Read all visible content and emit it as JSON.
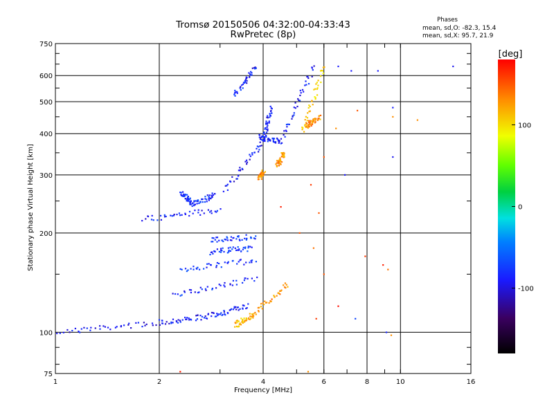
{
  "chart_data": {
    "type": "scatter",
    "title": "Tromsø 20150506 04:32:00-04:33:43",
    "subtitle": "RwPretec (8p)",
    "xlabel": "Frequency [MHz]",
    "ylabel": "Stationary phase Virtual Height [km]",
    "x_scale": "log",
    "y_scale": "log",
    "xlim": [
      1,
      16
    ],
    "ylim": [
      75,
      750
    ],
    "x_ticks": [
      1,
      2,
      4,
      6,
      8,
      10,
      16
    ],
    "y_ticks": [
      75,
      100,
      200,
      300,
      400,
      500,
      600,
      750
    ],
    "grid": true,
    "stats": {
      "header": "Phases",
      "line1": "mean, sd,O: -82.3, 15.4",
      "line2": "mean, sd,X:  95.7, 21.9"
    },
    "colorbar": {
      "label": "[deg]",
      "ticks": [
        "100",
        "0",
        "-100"
      ],
      "tick_values": [
        100,
        0,
        -100
      ],
      "range": [
        -180,
        180
      ]
    },
    "trace_segments": [
      {
        "x": [
          1.0,
          2.0
        ],
        "y": [
          100,
          107
        ],
        "phase": -95
      },
      {
        "x": [
          2.0,
          2.8
        ],
        "y": [
          107,
          112
        ],
        "phase": -90
      },
      {
        "x": [
          2.8,
          3.6
        ],
        "y": [
          112,
          120
        ],
        "phase": -88
      },
      {
        "x": [
          3.3,
          3.7
        ],
        "y": [
          105,
          112
        ],
        "phase": 115
      },
      {
        "x": [
          3.7,
          4.7
        ],
        "y": [
          112,
          140
        ],
        "phase": 130
      },
      {
        "x": [
          2.2,
          3.8
        ],
        "y": [
          130,
          145
        ],
        "phase": -85
      },
      {
        "x": [
          2.3,
          3.8
        ],
        "y": [
          155,
          165
        ],
        "phase": -80
      },
      {
        "x": [
          2.8,
          3.7
        ],
        "y": [
          175,
          180
        ],
        "phase": -75
      },
      {
        "x": [
          2.8,
          3.8
        ],
        "y": [
          190,
          195
        ],
        "phase": -78
      },
      {
        "x": [
          1.8,
          3.0
        ],
        "y": [
          220,
          235
        ],
        "phase": -88
      },
      {
        "x": [
          2.3,
          2.5
        ],
        "y": [
          265,
          245
        ],
        "phase": -82
      },
      {
        "x": [
          2.5,
          2.9
        ],
        "y": [
          245,
          260
        ],
        "phase": -82
      },
      {
        "x": [
          3.1,
          4.0
        ],
        "y": [
          270,
          380
        ],
        "phase": -92
      },
      {
        "x": [
          4.0,
          4.2
        ],
        "y": [
          380,
          480
        ],
        "phase": -90
      },
      {
        "x": [
          3.3,
          3.8
        ],
        "y": [
          520,
          640
        ],
        "phase": -88
      },
      {
        "x": [
          3.9,
          4.5
        ],
        "y": [
          390,
          380
        ],
        "phase": -85
      },
      {
        "x": [
          4.5,
          5.6
        ],
        "y": [
          380,
          640
        ],
        "phase": -88
      },
      {
        "x": [
          4.4,
          4.6
        ],
        "y": [
          320,
          350
        ],
        "phase": 125
      },
      {
        "x": [
          5.2,
          6.0
        ],
        "y": [
          400,
          640
        ],
        "phase": 105
      },
      {
        "x": [
          5.3,
          5.8
        ],
        "y": [
          420,
          450
        ],
        "phase": 130
      },
      {
        "x": [
          3.9,
          4.0
        ],
        "y": [
          295,
          305
        ],
        "phase": 130
      }
    ],
    "isolated_points": [
      {
        "x": 14.2,
        "y": 640,
        "phase": -95
      },
      {
        "x": 8.6,
        "y": 620,
        "phase": -90
      },
      {
        "x": 7.2,
        "y": 620,
        "phase": -90
      },
      {
        "x": 6.6,
        "y": 640,
        "phase": -90
      },
      {
        "x": 9.5,
        "y": 480,
        "phase": -88
      },
      {
        "x": 9.5,
        "y": 450,
        "phase": 130
      },
      {
        "x": 7.5,
        "y": 470,
        "phase": 150
      },
      {
        "x": 11.2,
        "y": 440,
        "phase": 130
      },
      {
        "x": 9.5,
        "y": 340,
        "phase": -95
      },
      {
        "x": 6.5,
        "y": 415,
        "phase": 130
      },
      {
        "x": 6.9,
        "y": 300,
        "phase": -90
      },
      {
        "x": 6.0,
        "y": 340,
        "phase": 150
      },
      {
        "x": 5.5,
        "y": 280,
        "phase": 160
      },
      {
        "x": 5.8,
        "y": 230,
        "phase": 150
      },
      {
        "x": 7.9,
        "y": 170,
        "phase": 160
      },
      {
        "x": 8.9,
        "y": 160,
        "phase": 170
      },
      {
        "x": 9.2,
        "y": 155,
        "phase": 140
      },
      {
        "x": 6.6,
        "y": 120,
        "phase": 175
      },
      {
        "x": 7.4,
        "y": 110,
        "phase": -70
      },
      {
        "x": 9.1,
        "y": 100,
        "phase": -85
      },
      {
        "x": 9.4,
        "y": 98,
        "phase": 130
      },
      {
        "x": 4.5,
        "y": 240,
        "phase": 170
      },
      {
        "x": 5.1,
        "y": 200,
        "phase": 150
      },
      {
        "x": 5.6,
        "y": 180,
        "phase": 140
      },
      {
        "x": 6.0,
        "y": 150,
        "phase": 150
      },
      {
        "x": 5.7,
        "y": 110,
        "phase": 160
      },
      {
        "x": 2.3,
        "y": 76,
        "phase": 170
      },
      {
        "x": 5.4,
        "y": 76,
        "phase": 130
      }
    ]
  }
}
